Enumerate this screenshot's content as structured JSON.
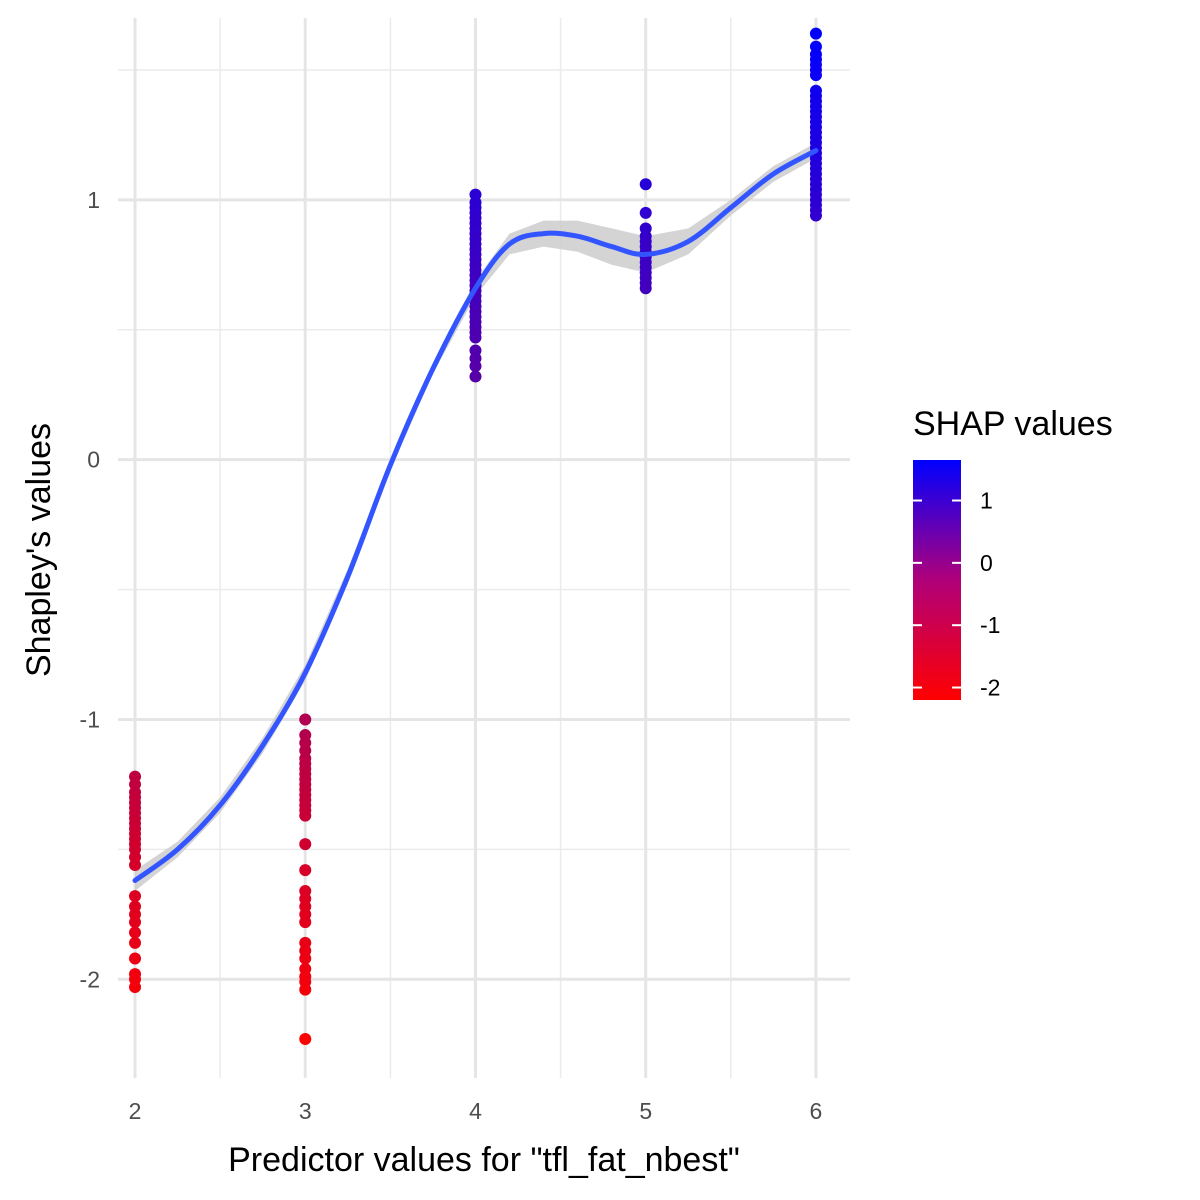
{
  "chart_data": {
    "type": "scatter",
    "title": "",
    "xlabel": "Predictor values for \"tfl_fat_nbest\"",
    "ylabel": "Shapley's values",
    "xlim": [
      1.9,
      6.2
    ],
    "ylim": [
      -2.38,
      1.7
    ],
    "x_ticks": [
      2,
      3,
      4,
      5,
      6
    ],
    "y_ticks": [
      -2,
      -1,
      0,
      1
    ],
    "grid": true,
    "series": [
      {
        "groups": [
          {
            "x": 2,
            "y": [
              -1.22,
              -1.25,
              -1.28,
              -1.3,
              -1.32,
              -1.34,
              -1.36,
              -1.38,
              -1.4,
              -1.42,
              -1.44,
              -1.46,
              -1.48,
              -1.5,
              -1.53,
              -1.56,
              -1.68,
              -1.72,
              -1.75,
              -1.78,
              -1.82,
              -1.86,
              -1.92,
              -1.98,
              -2.0,
              -2.03
            ]
          },
          {
            "x": 3,
            "y": [
              -1.0,
              -1.06,
              -1.09,
              -1.12,
              -1.15,
              -1.17,
              -1.19,
              -1.21,
              -1.23,
              -1.25,
              -1.27,
              -1.29,
              -1.31,
              -1.33,
              -1.35,
              -1.37,
              -1.48,
              -1.58,
              -1.66,
              -1.69,
              -1.72,
              -1.75,
              -1.78,
              -1.86,
              -1.89,
              -1.92,
              -1.96,
              -1.99,
              -2.01,
              -2.04,
              -2.23
            ]
          },
          {
            "x": 4,
            "y": [
              1.02,
              0.99,
              0.97,
              0.95,
              0.93,
              0.91,
              0.89,
              0.87,
              0.85,
              0.83,
              0.81,
              0.79,
              0.77,
              0.75,
              0.73,
              0.71,
              0.69,
              0.67,
              0.65,
              0.63,
              0.61,
              0.59,
              0.57,
              0.55,
              0.53,
              0.51,
              0.49,
              0.47,
              0.42,
              0.39,
              0.36,
              0.32
            ]
          },
          {
            "x": 5,
            "y": [
              1.06,
              0.95,
              0.89,
              0.86,
              0.84,
              0.82,
              0.8,
              0.78,
              0.76,
              0.74,
              0.72,
              0.7,
              0.68,
              0.66
            ]
          },
          {
            "x": 6,
            "y": [
              1.64,
              1.59,
              1.56,
              1.54,
              1.52,
              1.5,
              1.48,
              1.42,
              1.4,
              1.38,
              1.36,
              1.34,
              1.32,
              1.3,
              1.28,
              1.26,
              1.24,
              1.22,
              1.2,
              1.18,
              1.16,
              1.14,
              1.12,
              1.1,
              1.08,
              1.06,
              1.04,
              1.02,
              1.0,
              0.98,
              0.96,
              0.94
            ]
          }
        ]
      }
    ],
    "smooth_line": {
      "x": [
        2.0,
        2.25,
        2.5,
        2.75,
        3.0,
        3.25,
        3.5,
        3.75,
        4.0,
        4.2,
        4.4,
        4.6,
        4.8,
        5.0,
        5.25,
        5.5,
        5.75,
        6.0
      ],
      "y": [
        -1.62,
        -1.5,
        -1.33,
        -1.1,
        -0.82,
        -0.45,
        -0.02,
        0.35,
        0.66,
        0.83,
        0.87,
        0.86,
        0.82,
        0.79,
        0.84,
        0.97,
        1.1,
        1.19
      ],
      "ci_half_width": [
        0.04,
        0.03,
        0.03,
        0.03,
        0.03,
        0.03,
        0.02,
        0.02,
        0.03,
        0.04,
        0.05,
        0.06,
        0.07,
        0.07,
        0.05,
        0.03,
        0.03,
        0.03
      ],
      "color": "#3355ff",
      "band_color": "#cccccc"
    },
    "color_scale": {
      "title": "SHAP values",
      "low": -2.2,
      "high": 1.65,
      "low_color": "#ff0000",
      "high_color": "#0000ff",
      "breaks": [
        1,
        0,
        -1,
        -2
      ]
    }
  }
}
